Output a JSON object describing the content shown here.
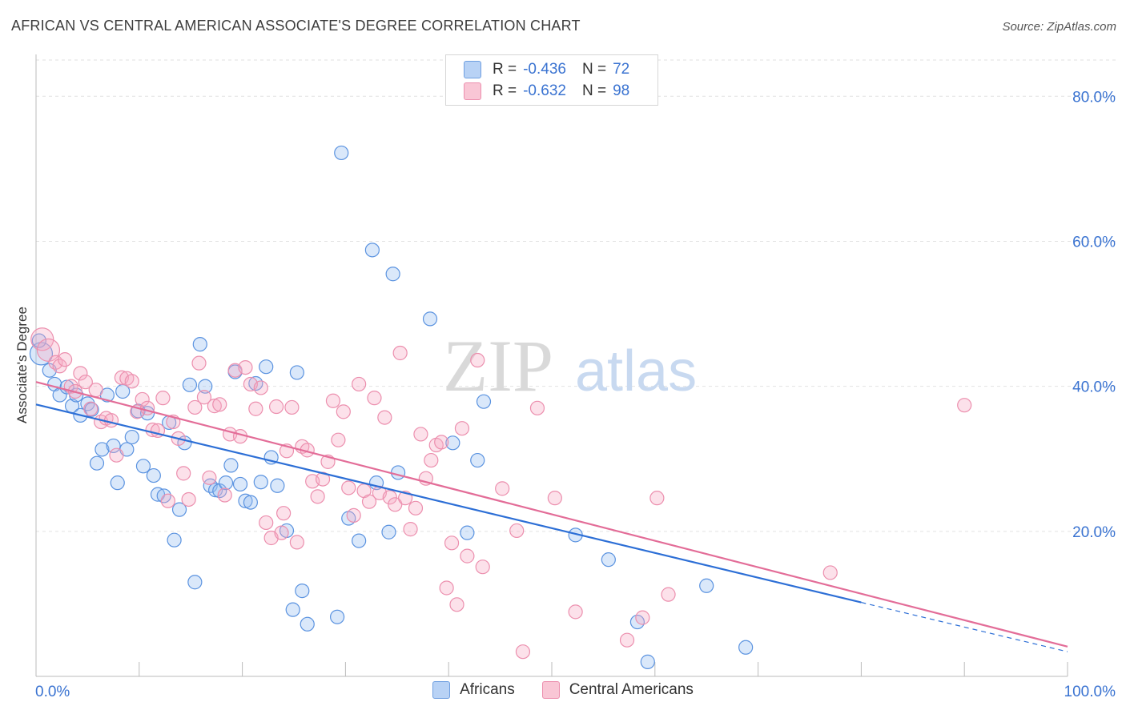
{
  "title": "AFRICAN VS CENTRAL AMERICAN ASSOCIATE'S DEGREE CORRELATION CHART",
  "source": "Source: ZipAtlas.com",
  "watermark": {
    "zip": "ZIP",
    "atlas": "atlas"
  },
  "legend": {
    "r_label": "R =",
    "n_label": "N =",
    "rows": [
      {
        "r": "-0.436",
        "n": "72",
        "fill": "#b8d2f5",
        "stroke": "#6f9fe0"
      },
      {
        "r": "-0.632",
        "n": "98",
        "fill": "#f9c6d5",
        "stroke": "#ec8fae"
      }
    ]
  },
  "chart_data": {
    "type": "scatter",
    "title": "AFRICAN VS CENTRAL AMERICAN ASSOCIATE'S DEGREE CORRELATION CHART",
    "xlabel": "",
    "ylabel": "Associate's Degree",
    "xlim": [
      0,
      100
    ],
    "ylim": [
      0,
      85
    ],
    "x_tick_labels": [
      "0.0%",
      "100.0%"
    ],
    "y_ticks": [
      20,
      40,
      60,
      80
    ],
    "y_tick_labels": [
      "20.0%",
      "40.0%",
      "60.0%",
      "80.0%"
    ],
    "grid": "horizontal dashed",
    "legend_position": "top-center",
    "series": [
      {
        "name": "Africans",
        "color": "#5b93e0",
        "fill": "rgba(150,190,240,0.35)",
        "trend": {
          "x0": 0,
          "y0": 37.5,
          "x1": 80,
          "y1": 10.2,
          "dash_to_x": 100,
          "dash_to_y": 3.4,
          "color": "#2d6fd6"
        },
        "points": [
          {
            "x": 0.5,
            "y": 44.5,
            "s": 14
          },
          {
            "x": 1.3,
            "y": 42.2
          },
          {
            "x": 1.8,
            "y": 40.3
          },
          {
            "x": 2.3,
            "y": 38.8
          },
          {
            "x": 3.0,
            "y": 39.9
          },
          {
            "x": 3.5,
            "y": 37.3
          },
          {
            "x": 3.9,
            "y": 38.8
          },
          {
            "x": 4.3,
            "y": 36.0
          },
          {
            "x": 5.0,
            "y": 37.6
          },
          {
            "x": 5.4,
            "y": 36.8
          },
          {
            "x": 5.9,
            "y": 29.4
          },
          {
            "x": 6.4,
            "y": 31.3
          },
          {
            "x": 6.9,
            "y": 38.8
          },
          {
            "x": 7.5,
            "y": 31.8
          },
          {
            "x": 7.9,
            "y": 26.7
          },
          {
            "x": 8.4,
            "y": 39.3
          },
          {
            "x": 8.8,
            "y": 31.3
          },
          {
            "x": 9.3,
            "y": 33.0
          },
          {
            "x": 9.9,
            "y": 36.6
          },
          {
            "x": 10.4,
            "y": 29.0
          },
          {
            "x": 10.8,
            "y": 36.3
          },
          {
            "x": 11.4,
            "y": 27.7
          },
          {
            "x": 11.8,
            "y": 25.1
          },
          {
            "x": 12.4,
            "y": 24.9
          },
          {
            "x": 12.9,
            "y": 35.0
          },
          {
            "x": 13.4,
            "y": 18.8
          },
          {
            "x": 13.9,
            "y": 23.0
          },
          {
            "x": 14.4,
            "y": 32.2
          },
          {
            "x": 14.9,
            "y": 40.2
          },
          {
            "x": 15.4,
            "y": 13.0
          },
          {
            "x": 15.9,
            "y": 45.8
          },
          {
            "x": 16.4,
            "y": 40.0
          },
          {
            "x": 16.9,
            "y": 26.3
          },
          {
            "x": 17.4,
            "y": 25.7
          },
          {
            "x": 17.8,
            "y": 25.6
          },
          {
            "x": 18.4,
            "y": 26.7
          },
          {
            "x": 18.9,
            "y": 29.1
          },
          {
            "x": 19.3,
            "y": 42.0
          },
          {
            "x": 19.8,
            "y": 26.5
          },
          {
            "x": 20.3,
            "y": 24.2
          },
          {
            "x": 20.8,
            "y": 24.0
          },
          {
            "x": 21.3,
            "y": 40.4
          },
          {
            "x": 21.8,
            "y": 26.8
          },
          {
            "x": 22.3,
            "y": 42.7
          },
          {
            "x": 22.8,
            "y": 30.2
          },
          {
            "x": 23.4,
            "y": 26.3
          },
          {
            "x": 24.3,
            "y": 20.1
          },
          {
            "x": 24.9,
            "y": 9.2
          },
          {
            "x": 25.3,
            "y": 41.9
          },
          {
            "x": 25.8,
            "y": 11.8
          },
          {
            "x": 26.3,
            "y": 7.2
          },
          {
            "x": 29.2,
            "y": 8.2
          },
          {
            "x": 29.6,
            "y": 72.2
          },
          {
            "x": 30.3,
            "y": 21.8
          },
          {
            "x": 31.3,
            "y": 18.7
          },
          {
            "x": 32.6,
            "y": 58.8
          },
          {
            "x": 33.0,
            "y": 26.7
          },
          {
            "x": 34.2,
            "y": 19.9
          },
          {
            "x": 34.6,
            "y": 55.5
          },
          {
            "x": 35.1,
            "y": 28.1
          },
          {
            "x": 38.2,
            "y": 49.3
          },
          {
            "x": 40.4,
            "y": 32.2
          },
          {
            "x": 41.8,
            "y": 19.8
          },
          {
            "x": 42.8,
            "y": 29.8
          },
          {
            "x": 43.4,
            "y": 37.9
          },
          {
            "x": 52.3,
            "y": 19.5
          },
          {
            "x": 55.5,
            "y": 16.1
          },
          {
            "x": 58.3,
            "y": 7.5
          },
          {
            "x": 59.3,
            "y": 2.0
          },
          {
            "x": 65.0,
            "y": 12.5
          },
          {
            "x": 68.8,
            "y": 4.0
          },
          {
            "x": 0.3,
            "y": 46.3
          }
        ]
      },
      {
        "name": "Central Americans",
        "color": "#ec8fae",
        "fill": "rgba(245,170,195,0.35)",
        "trend": {
          "x0": 0,
          "y0": 40.6,
          "x1": 100,
          "y1": 4.1,
          "color": "#e36d98"
        },
        "points": [
          {
            "x": 0.6,
            "y": 46.5,
            "s": 14
          },
          {
            "x": 1.2,
            "y": 45.0,
            "s": 14
          },
          {
            "x": 1.9,
            "y": 43.3
          },
          {
            "x": 2.3,
            "y": 42.8
          },
          {
            "x": 2.8,
            "y": 43.7
          },
          {
            "x": 3.4,
            "y": 40.0
          },
          {
            "x": 3.8,
            "y": 39.3
          },
          {
            "x": 4.3,
            "y": 41.8
          },
          {
            "x": 4.8,
            "y": 40.6
          },
          {
            "x": 5.3,
            "y": 36.9
          },
          {
            "x": 5.8,
            "y": 39.5
          },
          {
            "x": 6.3,
            "y": 35.1
          },
          {
            "x": 6.8,
            "y": 35.6
          },
          {
            "x": 7.3,
            "y": 35.3
          },
          {
            "x": 7.8,
            "y": 30.5
          },
          {
            "x": 8.3,
            "y": 41.2
          },
          {
            "x": 8.8,
            "y": 41.1
          },
          {
            "x": 9.3,
            "y": 40.7
          },
          {
            "x": 9.8,
            "y": 36.5
          },
          {
            "x": 10.3,
            "y": 38.2
          },
          {
            "x": 10.8,
            "y": 37.0
          },
          {
            "x": 11.3,
            "y": 34.0
          },
          {
            "x": 11.8,
            "y": 33.9
          },
          {
            "x": 12.3,
            "y": 38.4
          },
          {
            "x": 12.8,
            "y": 24.2
          },
          {
            "x": 13.3,
            "y": 35.1
          },
          {
            "x": 13.8,
            "y": 32.8
          },
          {
            "x": 14.3,
            "y": 28.0
          },
          {
            "x": 14.8,
            "y": 24.4
          },
          {
            "x": 15.4,
            "y": 37.1
          },
          {
            "x": 15.8,
            "y": 43.2
          },
          {
            "x": 16.3,
            "y": 38.5
          },
          {
            "x": 16.8,
            "y": 27.4
          },
          {
            "x": 17.3,
            "y": 37.3
          },
          {
            "x": 17.8,
            "y": 37.5
          },
          {
            "x": 18.3,
            "y": 25.0
          },
          {
            "x": 18.8,
            "y": 33.4
          },
          {
            "x": 19.3,
            "y": 42.2
          },
          {
            "x": 19.8,
            "y": 33.1
          },
          {
            "x": 20.3,
            "y": 42.6
          },
          {
            "x": 20.8,
            "y": 40.3
          },
          {
            "x": 21.3,
            "y": 36.9
          },
          {
            "x": 21.8,
            "y": 39.8
          },
          {
            "x": 22.3,
            "y": 21.2
          },
          {
            "x": 22.8,
            "y": 19.1
          },
          {
            "x": 23.3,
            "y": 37.2
          },
          {
            "x": 23.8,
            "y": 19.8
          },
          {
            "x": 24.3,
            "y": 31.1
          },
          {
            "x": 24.8,
            "y": 37.1
          },
          {
            "x": 25.3,
            "y": 18.5
          },
          {
            "x": 25.8,
            "y": 31.7
          },
          {
            "x": 26.3,
            "y": 31.2
          },
          {
            "x": 26.8,
            "y": 26.9
          },
          {
            "x": 27.3,
            "y": 24.8
          },
          {
            "x": 27.8,
            "y": 27.2
          },
          {
            "x": 28.3,
            "y": 29.6
          },
          {
            "x": 28.8,
            "y": 38.0
          },
          {
            "x": 29.3,
            "y": 32.6
          },
          {
            "x": 29.8,
            "y": 36.5
          },
          {
            "x": 30.3,
            "y": 26.0
          },
          {
            "x": 30.8,
            "y": 22.2
          },
          {
            "x": 31.3,
            "y": 40.3
          },
          {
            "x": 31.8,
            "y": 25.6
          },
          {
            "x": 32.3,
            "y": 24.1
          },
          {
            "x": 32.8,
            "y": 38.4
          },
          {
            "x": 33.3,
            "y": 25.3
          },
          {
            "x": 33.8,
            "y": 35.7
          },
          {
            "x": 34.3,
            "y": 24.7
          },
          {
            "x": 34.8,
            "y": 23.7
          },
          {
            "x": 35.3,
            "y": 44.6
          },
          {
            "x": 35.8,
            "y": 24.6
          },
          {
            "x": 36.3,
            "y": 20.3
          },
          {
            "x": 36.8,
            "y": 23.2
          },
          {
            "x": 37.3,
            "y": 33.4
          },
          {
            "x": 37.8,
            "y": 27.3
          },
          {
            "x": 38.3,
            "y": 29.8
          },
          {
            "x": 38.8,
            "y": 31.9
          },
          {
            "x": 39.3,
            "y": 32.3
          },
          {
            "x": 39.8,
            "y": 12.2
          },
          {
            "x": 40.3,
            "y": 18.4
          },
          {
            "x": 40.8,
            "y": 9.9
          },
          {
            "x": 41.3,
            "y": 34.2
          },
          {
            "x": 41.8,
            "y": 16.6
          },
          {
            "x": 42.8,
            "y": 43.6
          },
          {
            "x": 43.3,
            "y": 15.1
          },
          {
            "x": 45.2,
            "y": 25.9
          },
          {
            "x": 46.6,
            "y": 20.1
          },
          {
            "x": 47.2,
            "y": 3.4
          },
          {
            "x": 48.6,
            "y": 37.0
          },
          {
            "x": 50.3,
            "y": 24.6
          },
          {
            "x": 52.3,
            "y": 8.9
          },
          {
            "x": 57.3,
            "y": 5.0
          },
          {
            "x": 58.8,
            "y": 8.1
          },
          {
            "x": 60.2,
            "y": 24.6
          },
          {
            "x": 61.3,
            "y": 11.3
          },
          {
            "x": 77.0,
            "y": 14.3
          },
          {
            "x": 90.0,
            "y": 37.4
          },
          {
            "x": 24.0,
            "y": 22.5
          }
        ]
      }
    ]
  },
  "bottom_legend": [
    {
      "label": "Africans",
      "fill": "#b8d2f5",
      "stroke": "#6f9fe0"
    },
    {
      "label": "Central Americans",
      "fill": "#f9c6d5",
      "stroke": "#ec8fae"
    }
  ]
}
